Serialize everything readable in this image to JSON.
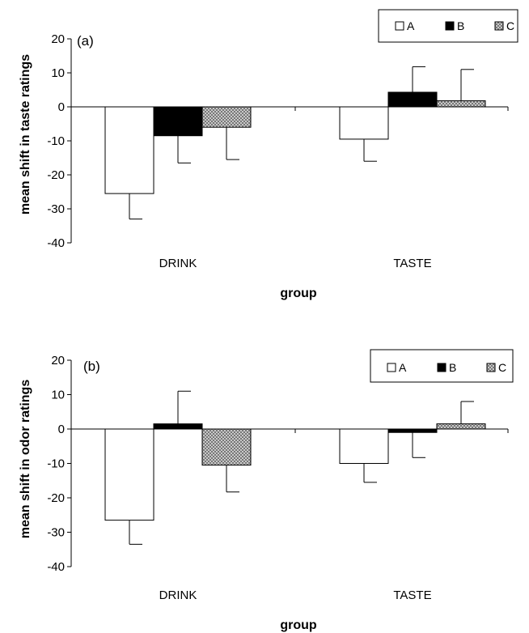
{
  "chart_data": [
    {
      "type": "bar",
      "panel_label": "(a)",
      "categories": [
        "DRINK",
        "TASTE"
      ],
      "series": [
        {
          "name": "A",
          "values": [
            -25.5,
            -9.5
          ],
          "errors": [
            7.5,
            6.5
          ]
        },
        {
          "name": "B",
          "values": [
            -8.5,
            4.3
          ],
          "errors": [
            8.0,
            7.5
          ]
        },
        {
          "name": "C",
          "values": [
            -6.0,
            1.8
          ],
          "errors": [
            9.5,
            9.2
          ]
        }
      ],
      "xlabel": "group",
      "ylabel": "mean shift in taste ratings",
      "ylim": [
        -40,
        20
      ],
      "yticks": [
        20,
        10,
        0,
        -10,
        -20,
        -30,
        -40
      ],
      "legend_position": "top-right",
      "grid": false
    },
    {
      "type": "bar",
      "panel_label": "(b)",
      "categories": [
        "DRINK",
        "TASTE"
      ],
      "series": [
        {
          "name": "A",
          "values": [
            -26.5,
            -10.0
          ],
          "errors": [
            7.0,
            5.5
          ]
        },
        {
          "name": "B",
          "values": [
            1.5,
            -1.0
          ],
          "errors": [
            9.5,
            7.3
          ]
        },
        {
          "name": "C",
          "values": [
            -10.5,
            1.5
          ],
          "errors": [
            7.8,
            6.5
          ]
        }
      ],
      "xlabel": "group",
      "ylabel": "mean shift in odor ratings",
      "ylim": [
        -40,
        20
      ],
      "yticks": [
        20,
        10,
        0,
        -10,
        -20,
        -30,
        -40
      ],
      "legend_position": "top-right",
      "grid": false
    }
  ],
  "style": {
    "series_fills": {
      "A": "#ffffff",
      "B": "#000000",
      "C": "#c8c8c8"
    },
    "series_patterns": {
      "A": "none",
      "B": "none",
      "C": "crosshatch"
    },
    "stroke": "#000000"
  }
}
